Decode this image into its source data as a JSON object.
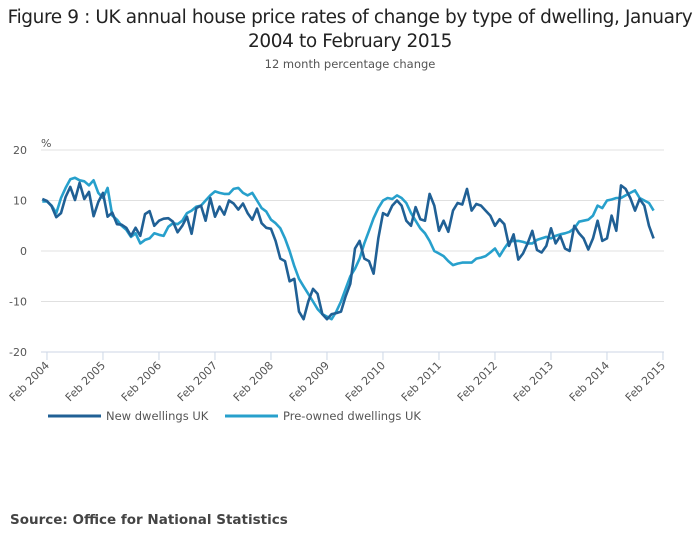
{
  "chart_data": {
    "type": "line",
    "title": "Figure 9 : UK annual house price rates of change by type of dwelling, January 2004 to February 2015",
    "subtitle": "12 month percentage change",
    "ylabel": "%",
    "xlabel": "",
    "ylim": [
      -20,
      20
    ],
    "yticks": [
      20,
      10,
      0,
      -10,
      -20
    ],
    "grid": true,
    "legend_position": "bottom-left",
    "x_start": "Jan 2004",
    "x_end": "Feb 2015",
    "x_frequency": "monthly",
    "xtick_labels": [
      "Feb 2004",
      "Feb 2005",
      "Feb 2006",
      "Feb 2007",
      "Feb 2008",
      "Feb 2009",
      "Feb 2010",
      "Feb 2011",
      "Feb 2012",
      "Feb 2013",
      "Feb 2014",
      "Feb 2015"
    ],
    "xtick_month_index": [
      1,
      13,
      25,
      37,
      49,
      61,
      73,
      85,
      97,
      109,
      121,
      133
    ],
    "series": [
      {
        "name": "New dwellings UK",
        "color": "#206095",
        "values": [
          10.3,
          9.9,
          8.9,
          6.7,
          7.5,
          10.7,
          12.7,
          10.1,
          13.5,
          10.3,
          11.7,
          6.9,
          9.7,
          11.5,
          6.8,
          7.6,
          5.3,
          5.2,
          4.6,
          3.0,
          4.6,
          3.0,
          7.3,
          7.9,
          5.0,
          6.0,
          6.4,
          6.5,
          5.8,
          3.7,
          5.0,
          6.8,
          3.4,
          8.5,
          9.0,
          6.0,
          10.5,
          6.8,
          8.8,
          7.2,
          10.0,
          9.4,
          8.2,
          9.4,
          7.5,
          6.2,
          8.4,
          5.5,
          4.6,
          4.4,
          2.0,
          -1.5,
          -2.0,
          -6.0,
          -5.5,
          -12.0,
          -13.5,
          -10.0,
          -7.5,
          -8.5,
          -12.5,
          -13.5,
          -12.5,
          -12.3,
          -12.0,
          -9.0,
          -6.5,
          0.5,
          2.0,
          -1.5,
          -2.0,
          -4.5,
          2.5,
          7.5,
          7.0,
          9.0,
          10.0,
          9.0,
          6.0,
          5.0,
          8.7,
          6.3,
          6.0,
          11.3,
          9.0,
          4.0,
          6.0,
          3.8,
          8.0,
          9.5,
          9.2,
          12.3,
          8.0,
          9.3,
          9.0,
          8.0,
          7.0,
          5.0,
          6.3,
          5.3,
          1.0,
          3.3,
          -1.7,
          -0.5,
          1.5,
          4.0,
          0.2,
          -0.3,
          1.0,
          4.5,
          1.5,
          3.0,
          0.5,
          0.0,
          5.0,
          3.5,
          2.5,
          0.3,
          2.5,
          6.0,
          2.0,
          2.5,
          7.0,
          4.0,
          13.0,
          12.3,
          10.5,
          8.0,
          10.3,
          9.0,
          5.0,
          2.5
        ]
      },
      {
        "name": "Pre-owned dwellings UK",
        "color": "#27a0cc",
        "values": [
          9.8,
          9.8,
          9.0,
          7.5,
          10.5,
          12.5,
          14.2,
          14.5,
          14.0,
          13.8,
          13.0,
          14.0,
          11.5,
          10.5,
          12.5,
          7.0,
          6.2,
          5.0,
          4.2,
          2.8,
          3.5,
          1.5,
          2.2,
          2.5,
          3.5,
          3.2,
          3.0,
          4.8,
          5.5,
          5.3,
          6.0,
          7.5,
          8.0,
          8.8,
          9.0,
          10.0,
          11.0,
          11.8,
          11.5,
          11.3,
          11.3,
          12.3,
          12.5,
          11.5,
          11.0,
          11.5,
          10.0,
          8.5,
          7.8,
          6.2,
          5.5,
          4.5,
          2.5,
          0.0,
          -3.0,
          -5.5,
          -7.0,
          -8.5,
          -10.0,
          -11.5,
          -12.5,
          -13.0,
          -13.5,
          -12.0,
          -10.0,
          -7.5,
          -5.0,
          -3.5,
          -1.5,
          1.5,
          4.0,
          6.5,
          8.5,
          10.0,
          10.5,
          10.3,
          11.0,
          10.5,
          9.5,
          7.5,
          6.0,
          4.5,
          3.5,
          2.0,
          0.0,
          -0.5,
          -1.0,
          -2.0,
          -2.8,
          -2.5,
          -2.3,
          -2.3,
          -2.3,
          -1.5,
          -1.3,
          -1.0,
          -0.3,
          0.5,
          -1.0,
          0.5,
          1.8,
          2.0,
          2.0,
          1.8,
          1.5,
          1.5,
          2.2,
          2.5,
          2.8,
          2.5,
          3.0,
          3.3,
          3.5,
          3.8,
          4.5,
          5.8,
          6.0,
          6.2,
          7.0,
          9.0,
          8.5,
          10.0,
          10.2,
          10.5,
          10.5,
          11.0,
          11.5,
          12.0,
          10.5,
          10.0,
          9.5,
          8.0
        ]
      }
    ]
  },
  "page": {
    "title": "Figure 9 : UK annual house price rates of change by type of dwelling, January 2004 to February 2015",
    "subtitle": "12 month percentage change",
    "y_unit": "%",
    "source": "Source: Office for National Statistics"
  },
  "style": {
    "grid_color": "#e0e0e0",
    "axis_color": "#ccd6e6"
  }
}
